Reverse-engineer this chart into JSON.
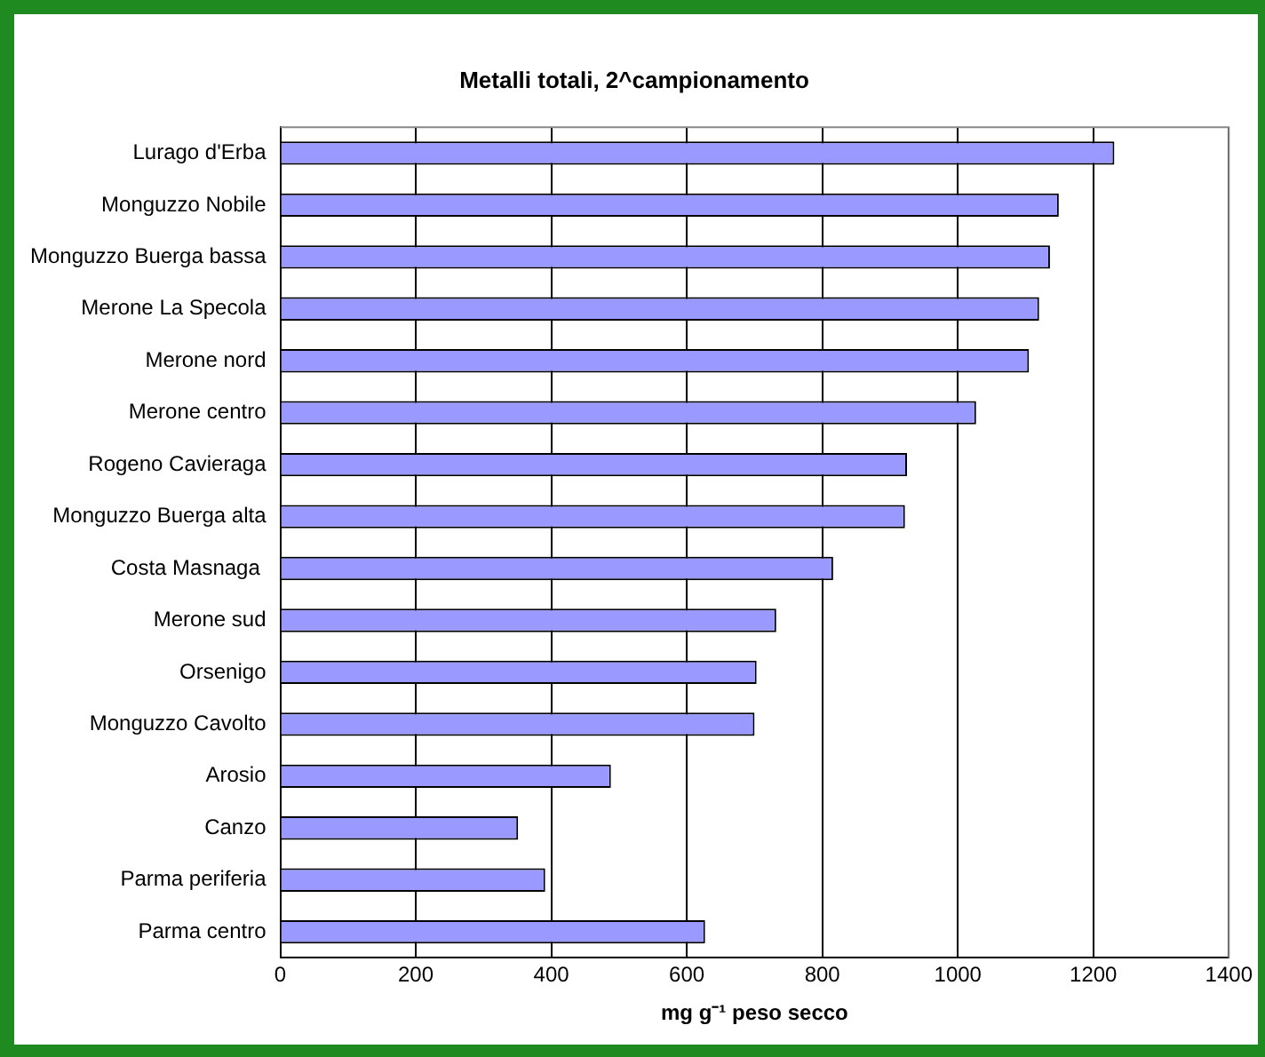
{
  "chart_data": {
    "type": "bar",
    "orientation": "horizontal",
    "title": "Metalli totali, 2^campionamento",
    "xlabel": "mg g⁻¹ peso secco",
    "categories": [
      "Lurago d'Erba",
      "Monguzzo Nobile",
      "Monguzzo Buerga bassa",
      "Merone La Specola",
      "Merone nord",
      "Merone centro",
      "Rogeno Cavieraga",
      "Monguzzo Buerga alta",
      "Costa Masnaga ",
      "Merone sud",
      "Orsenigo",
      "Monguzzo Cavolto",
      "Arosio",
      "Canzo",
      "Parma periferia",
      "Parma centro"
    ],
    "values": [
      1231,
      1149,
      1136,
      1120,
      1105,
      1027,
      925,
      922,
      816,
      732,
      703,
      700,
      488,
      351,
      391,
      627
    ],
    "color": "#9999ff",
    "xlim": [
      0,
      1400
    ],
    "xticks": [
      0,
      200,
      400,
      600,
      800,
      1000,
      1200,
      1400
    ],
    "grid": "x",
    "legend": false
  }
}
